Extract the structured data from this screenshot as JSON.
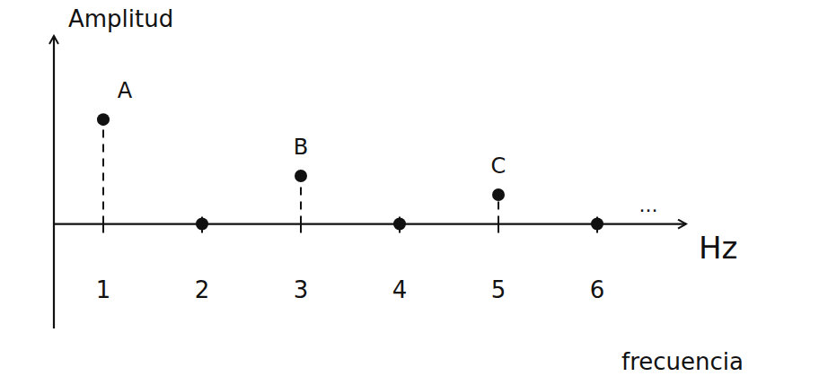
{
  "chart_data": {
    "type": "stem",
    "ylabel": "Amplitud",
    "xlabel": "Hz",
    "xlabel_note": "frecuencia",
    "continuation": "...",
    "x": [
      1,
      2,
      3,
      4,
      5,
      6
    ],
    "values": [
      1,
      0,
      0.46,
      0,
      0.28,
      0
    ],
    "point_labels": [
      "A",
      null,
      "B",
      null,
      "C",
      null
    ],
    "xlim": [
      0.5,
      6.9
    ],
    "ylim": [
      -1,
      1.8
    ],
    "xticks": [
      1,
      2,
      3,
      4,
      5,
      6
    ],
    "tick_labels": "x",
    "color": "#111111",
    "marker": "circle",
    "line_style": "dashed",
    "grid": false
  }
}
